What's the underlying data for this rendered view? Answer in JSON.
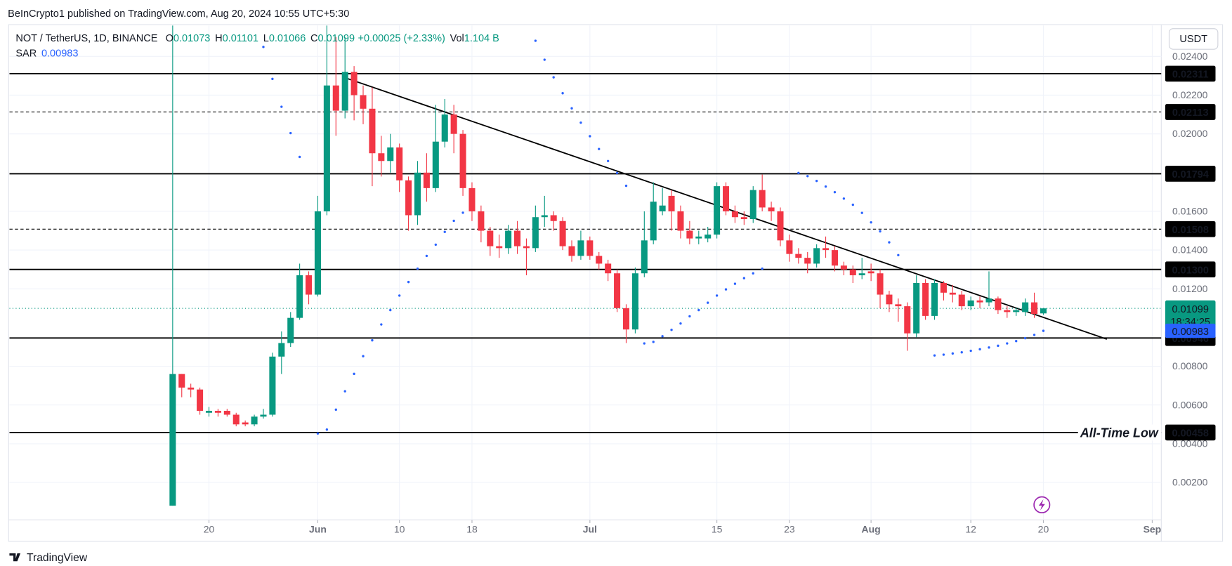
{
  "chart_data": {
    "type": "candlestick",
    "published": "BeInCrypto1 published on TradingView.com, Aug 20, 2024 10:55 UTC+5:30",
    "symbol": "NOT / TetherUS, 1D, BINANCE",
    "legend_labels": {
      "o": "O",
      "h": "H",
      "l": "L",
      "c": "C",
      "vol": "Vol"
    },
    "change": "+0.00025 (+2.33%)",
    "volume": "1.104 B",
    "currency": "USDT",
    "countdown": "18:34:25",
    "footer": "TradingView",
    "up_color": "#089981",
    "down_color": "#f23645",
    "grid": true,
    "x": [
      "2024-05-16",
      "2024-05-17",
      "2024-05-18",
      "2024-05-19",
      "2024-05-20",
      "2024-05-21",
      "2024-05-22",
      "2024-05-23",
      "2024-05-24",
      "2024-05-25",
      "2024-05-26",
      "2024-05-27",
      "2024-05-28",
      "2024-05-29",
      "2024-05-30",
      "2024-05-31",
      "2024-06-01",
      "2024-06-02",
      "2024-06-03",
      "2024-06-04",
      "2024-06-05",
      "2024-06-06",
      "2024-06-07",
      "2024-06-08",
      "2024-06-09",
      "2024-06-10",
      "2024-06-11",
      "2024-06-12",
      "2024-06-13",
      "2024-06-14",
      "2024-06-15",
      "2024-06-16",
      "2024-06-17",
      "2024-06-18",
      "2024-06-19",
      "2024-06-20",
      "2024-06-21",
      "2024-06-22",
      "2024-06-23",
      "2024-06-24",
      "2024-06-25",
      "2024-06-26",
      "2024-06-27",
      "2024-06-28",
      "2024-06-29",
      "2024-06-30",
      "2024-07-01",
      "2024-07-02",
      "2024-07-03",
      "2024-07-04",
      "2024-07-05",
      "2024-07-06",
      "2024-07-07",
      "2024-07-08",
      "2024-07-09",
      "2024-07-10",
      "2024-07-11",
      "2024-07-12",
      "2024-07-13",
      "2024-07-14",
      "2024-07-15",
      "2024-07-16",
      "2024-07-17",
      "2024-07-18",
      "2024-07-19",
      "2024-07-20",
      "2024-07-21",
      "2024-07-22",
      "2024-07-23",
      "2024-07-24",
      "2024-07-25",
      "2024-07-26",
      "2024-07-27",
      "2024-07-28",
      "2024-07-29",
      "2024-07-30",
      "2024-07-31",
      "2024-08-01",
      "2024-08-02",
      "2024-08-03",
      "2024-08-04",
      "2024-08-05",
      "2024-08-06",
      "2024-08-07",
      "2024-08-08",
      "2024-08-09",
      "2024-08-10",
      "2024-08-11",
      "2024-08-12",
      "2024-08-13",
      "2024-08-14",
      "2024-08-15",
      "2024-08-16",
      "2024-08-17",
      "2024-08-18",
      "2024-08-19",
      "2024-08-20"
    ],
    "open": [
      0.0008,
      0.0076,
      0.0069,
      0.0068,
      0.0056,
      0.0057,
      0.0057,
      0.0055,
      0.0051,
      0.005,
      0.0054,
      0.0055,
      0.0085,
      0.0092,
      0.0105,
      0.0127,
      0.0117,
      0.016,
      0.0225,
      0.0212,
      0.0232,
      0.022,
      0.0213,
      0.019,
      0.0186,
      0.0193,
      0.0176,
      0.0158,
      0.018,
      0.0172,
      0.0196,
      0.021,
      0.02,
      0.0172,
      0.016,
      0.015,
      0.0142,
      0.0141,
      0.015,
      0.0142,
      0.0141,
      0.0157,
      0.0158,
      0.0155,
      0.0142,
      0.0137,
      0.0145,
      0.0137,
      0.0133,
      0.0128,
      0.011,
      0.0099,
      0.0128,
      0.0145,
      0.016,
      0.0168,
      0.016,
      0.015,
      0.0146,
      0.0146,
      0.0148,
      0.0173,
      0.016,
      0.0157,
      0.0156,
      0.0171,
      0.0162,
      0.016,
      0.0145,
      0.0138,
      0.0136,
      0.0133,
      0.0141,
      0.014,
      0.0132,
      0.013,
      0.0127,
      0.0129,
      0.0128,
      0.0117,
      0.0112,
      0.0111,
      0.0097,
      0.0123,
      0.0106,
      0.0123,
      0.0118,
      0.0117,
      0.0111,
      0.0114,
      0.0113,
      0.0115,
      0.0109,
      0.0108,
      0.0108,
      0.0113,
      0.01073
    ],
    "high": [
      0.0256,
      0.0076,
      0.0071,
      0.0069,
      0.0059,
      0.0058,
      0.0058,
      0.0056,
      0.0052,
      0.0055,
      0.0058,
      0.0087,
      0.0098,
      0.0108,
      0.0133,
      0.0129,
      0.0168,
      0.0256,
      0.025,
      0.025,
      0.0235,
      0.0225,
      0.0224,
      0.0199,
      0.02,
      0.0195,
      0.0178,
      0.0186,
      0.019,
      0.0215,
      0.0218,
      0.0215,
      0.0202,
      0.0175,
      0.0163,
      0.0152,
      0.0148,
      0.0153,
      0.0155,
      0.0146,
      0.0163,
      0.0168,
      0.016,
      0.0157,
      0.0145,
      0.015,
      0.0147,
      0.0139,
      0.0135,
      0.013,
      0.0112,
      0.0131,
      0.016,
      0.0175,
      0.0172,
      0.0171,
      0.0163,
      0.0155,
      0.015,
      0.0152,
      0.0175,
      0.0175,
      0.0163,
      0.016,
      0.0173,
      0.0179,
      0.0165,
      0.0162,
      0.0148,
      0.0141,
      0.0139,
      0.0143,
      0.0147,
      0.0142,
      0.0134,
      0.0132,
      0.0136,
      0.0133,
      0.013,
      0.0119,
      0.0115,
      0.0113,
      0.0127,
      0.0125,
      0.0125,
      0.0124,
      0.0122,
      0.0119,
      0.0116,
      0.0116,
      0.0129,
      0.0116,
      0.0111,
      0.011,
      0.0115,
      0.0118,
      0.01101
    ],
    "low": [
      0.0008,
      0.0064,
      0.0064,
      0.0055,
      0.0054,
      0.0054,
      0.0054,
      0.0049,
      0.0049,
      0.0049,
      0.0053,
      0.0054,
      0.0076,
      0.009,
      0.0104,
      0.0112,
      0.0116,
      0.0158,
      0.0199,
      0.0208,
      0.0207,
      0.0205,
      0.0173,
      0.0178,
      0.018,
      0.017,
      0.015,
      0.0153,
      0.0165,
      0.017,
      0.0193,
      0.019,
      0.0168,
      0.0155,
      0.0144,
      0.0137,
      0.0136,
      0.0138,
      0.0138,
      0.0127,
      0.0139,
      0.0152,
      0.015,
      0.014,
      0.0134,
      0.0135,
      0.0135,
      0.013,
      0.0124,
      0.0108,
      0.0092,
      0.0097,
      0.0126,
      0.0143,
      0.0158,
      0.015,
      0.0146,
      0.0143,
      0.0143,
      0.0144,
      0.0146,
      0.0158,
      0.0154,
      0.0153,
      0.0154,
      0.016,
      0.0155,
      0.0142,
      0.0134,
      0.0133,
      0.0128,
      0.0131,
      0.0136,
      0.0129,
      0.0127,
      0.0123,
      0.0125,
      0.0124,
      0.011,
      0.0108,
      0.0103,
      0.0088,
      0.0095,
      0.0104,
      0.0104,
      0.0114,
      0.0113,
      0.0109,
      0.0109,
      0.011,
      0.0111,
      0.0107,
      0.0105,
      0.0106,
      0.0106,
      0.0105,
      0.01066
    ],
    "close": [
      0.0076,
      0.0069,
      0.0068,
      0.0057,
      0.0057,
      0.0056,
      0.0055,
      0.005,
      0.005,
      0.0054,
      0.0055,
      0.0085,
      0.0092,
      0.0105,
      0.0127,
      0.0117,
      0.016,
      0.0225,
      0.0212,
      0.0232,
      0.022,
      0.0213,
      0.019,
      0.0186,
      0.0193,
      0.0176,
      0.0158,
      0.018,
      0.0172,
      0.0196,
      0.021,
      0.02,
      0.0172,
      0.016,
      0.015,
      0.0142,
      0.0141,
      0.015,
      0.0142,
      0.0141,
      0.0157,
      0.0158,
      0.0155,
      0.0142,
      0.0137,
      0.0145,
      0.0137,
      0.0133,
      0.0128,
      0.011,
      0.0099,
      0.0128,
      0.0145,
      0.0165,
      0.0163,
      0.016,
      0.015,
      0.0146,
      0.0147,
      0.0148,
      0.0173,
      0.016,
      0.0157,
      0.0156,
      0.0171,
      0.0162,
      0.016,
      0.0145,
      0.0138,
      0.0136,
      0.0133,
      0.0141,
      0.014,
      0.0132,
      0.013,
      0.0127,
      0.0128,
      0.0128,
      0.0117,
      0.0112,
      0.0111,
      0.0097,
      0.0123,
      0.0106,
      0.0123,
      0.0118,
      0.0117,
      0.0111,
      0.0114,
      0.0113,
      0.0115,
      0.0109,
      0.0108,
      0.0109,
      0.0113,
      0.0107,
      0.01099
    ],
    "sar": {
      "name": "SAR",
      "color": "#2962ff",
      "values": [
        null,
        null,
        null,
        null,
        null,
        null,
        null,
        null,
        null,
        null,
        0.02449,
        0.02284,
        0.0214,
        0.02004,
        0.01881,
        null,
        0.00453,
        0.00473,
        0.00576,
        0.00671,
        0.00761,
        0.00852,
        0.00934,
        0.01016,
        0.0109,
        0.01165,
        0.01235,
        0.01304,
        0.0137,
        0.01428,
        0.01494,
        0.01551,
        0.01593,
        null,
        null,
        null,
        null,
        null,
        null,
        null,
        0.02481,
        0.02383,
        0.02292,
        0.0221,
        0.02132,
        0.02058,
        0.01988,
        0.01922,
        0.0186,
        0.01798,
        0.01732,
        null,
        0.00918,
        0.00926,
        0.00955,
        0.00988,
        0.01021,
        0.01058,
        0.0109,
        0.01128,
        0.01165,
        0.01197,
        0.01226,
        0.01255,
        0.0128,
        0.01304,
        null,
        null,
        null,
        0.01798,
        0.01782,
        0.01757,
        0.01728,
        0.01699,
        0.01666,
        0.01634,
        0.01592,
        0.01543,
        0.01497,
        0.0144,
        0.01374,
        null,
        null,
        null,
        0.00856,
        0.0086,
        0.00866,
        0.00872,
        0.0088,
        0.00888,
        0.00897,
        0.00906,
        0.00918,
        0.0093,
        0.00945,
        0.00962,
        0.00983
      ]
    },
    "levels": [
      {
        "value": 0.02311,
        "style": "solid"
      },
      {
        "value": 0.02113,
        "style": "dashed"
      },
      {
        "value": 0.01794,
        "style": "solid"
      },
      {
        "value": 0.01508,
        "style": "dashed"
      },
      {
        "value": 0.013,
        "label": "0.01300",
        "style": "solid"
      },
      {
        "value": 0.00946,
        "style": "solid"
      },
      {
        "value": 0.00458,
        "style": "solid",
        "note": "All-Time Low"
      }
    ],
    "trendline": {
      "x": [
        "2024-06-04",
        "2024-08-27"
      ],
      "y": [
        0.0229,
        0.0094
      ]
    },
    "xlim": [
      "2024-04-28",
      "2024-09-02"
    ],
    "xticks": [
      {
        "value": "2024-05-20",
        "label": "20"
      },
      {
        "value": "2024-06-01",
        "label": "Jun"
      },
      {
        "value": "2024-06-10",
        "label": "10"
      },
      {
        "value": "2024-06-18",
        "label": "18"
      },
      {
        "value": "2024-07-01",
        "label": "Jul"
      },
      {
        "value": "2024-07-15",
        "label": "15"
      },
      {
        "value": "2024-07-23",
        "label": "23"
      },
      {
        "value": "2024-08-01",
        "label": "Aug"
      },
      {
        "value": "2024-08-12",
        "label": "12"
      },
      {
        "value": "2024-08-20",
        "label": "20"
      },
      {
        "value": "2024-09-01",
        "label": "Sep"
      }
    ],
    "ylim": [
      -0.001,
      0.0256
    ],
    "yticks": [
      {
        "value": 0.002,
        "label": "0.00200"
      },
      {
        "value": 0.004,
        "label": "0.00400"
      },
      {
        "value": 0.006,
        "label": "0.00600"
      },
      {
        "value": 0.008,
        "label": "0.00800"
      },
      {
        "value": 0.012,
        "label": "0.01200"
      },
      {
        "value": 0.014,
        "label": "0.01400"
      },
      {
        "value": 0.016,
        "label": "0.01600"
      },
      {
        "value": 0.02,
        "label": "0.02000"
      },
      {
        "value": 0.022,
        "label": "0.02200"
      },
      {
        "value": 0.024,
        "label": "0.02400"
      }
    ]
  }
}
